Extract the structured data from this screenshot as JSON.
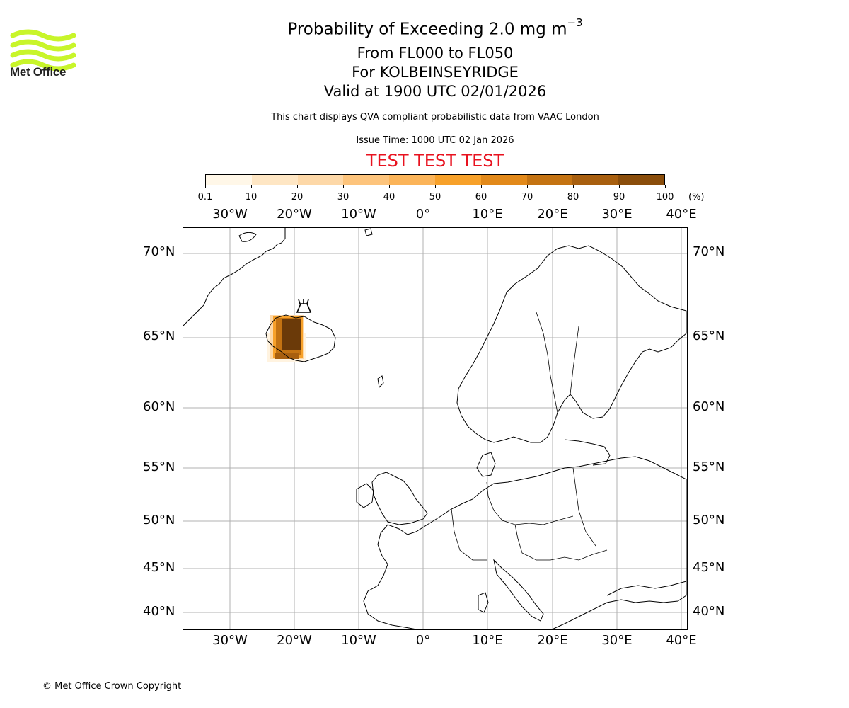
{
  "logo": {
    "text": "Met Office",
    "color": "#c8f52a"
  },
  "title": {
    "main": "Probability of Exceeding 2.0 mg m",
    "superscript": "−3"
  },
  "subtitle": {
    "levels": "From FL000 to FL050",
    "volcano": "For KOLBEINSEYRIDGE",
    "valid": "Valid at 1900 UTC 02/01/2026"
  },
  "disclaimer": "This chart displays QVA compliant probabilistic data from VAAC London",
  "issue_time": "Issue Time: 1000 UTC 02 Jan 2026",
  "test_banner": "TEST TEST TEST",
  "colorbar": {
    "ticks": [
      "0.1",
      "10",
      "20",
      "30",
      "40",
      "50",
      "60",
      "70",
      "80",
      "90",
      "100"
    ],
    "unit": "(%)",
    "colors": [
      "#fff7e8",
      "#fee6c4",
      "#fdd8a8",
      "#fdc47c",
      "#fbb459",
      "#f7a12a",
      "#e2891a",
      "#c47312",
      "#a85f0f",
      "#8a4d0b",
      "#6b3a09"
    ]
  },
  "axes": {
    "lon_labels": [
      "30°W",
      "20°W",
      "10°W",
      "0°",
      "10°E",
      "20°E",
      "30°E",
      "40°E"
    ],
    "lat_labels": [
      "70°N",
      "65°N",
      "60°N",
      "55°N",
      "50°N",
      "45°N",
      "40°N"
    ]
  },
  "plume": {
    "name": "ash probability plume",
    "probability_levels": [
      100,
      80,
      60,
      30,
      10
    ]
  },
  "copyright": "© Met Office Crown Copyright"
}
